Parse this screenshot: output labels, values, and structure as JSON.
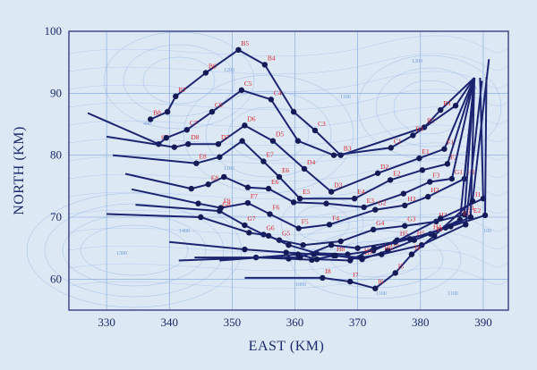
{
  "chart_data": {
    "type": "line",
    "xlabel": "EAST (KM)",
    "ylabel": "NORTH (KM)",
    "xlim": [
      324,
      394
    ],
    "ylim": [
      55,
      100
    ],
    "xticks": [
      "330",
      "340",
      "350",
      "360",
      "370",
      "380",
      "390"
    ],
    "yticks": [
      "60",
      "70",
      "80",
      "90",
      "100"
    ],
    "grid": true,
    "colors": {
      "line": "#1b2470",
      "marker": "#141a55",
      "label": "#d82a2a",
      "contour": "#8fb4e6",
      "background": "#dde8f5",
      "grid": "#7ea4d8"
    },
    "hub": [
      388.6,
      92.5
    ],
    "contour_labels": [
      "1300",
      "1400",
      "1100",
      "1100",
      "1200",
      "1000",
      "400",
      "1100",
      "1000",
      "100",
      "1200",
      "1100"
    ],
    "series": [
      {
        "points": [
          [
            337.0,
            85.8
          ],
          [
            339.7,
            87.0
          ],
          [
            341.0,
            89.5
          ],
          [
            345.8,
            93.3
          ],
          [
            351.0,
            97.0
          ],
          [
            355.2,
            94.6
          ],
          [
            359.8,
            87.0
          ],
          [
            363.2,
            84.0
          ],
          [
            367.3,
            80.0
          ],
          [
            380.6,
            84.5
          ],
          [
            383.2,
            87.3
          ],
          [
            388.6,
            92.5
          ]
        ],
        "labels": [
          "B8",
          "",
          "B7",
          "B6",
          "B5",
          "B4",
          "",
          "C3",
          "B3",
          "B2",
          "B1",
          ""
        ]
      },
      {
        "points": [
          [
            327.0,
            86.8
          ],
          [
            338.3,
            81.8
          ],
          [
            339.5,
            82.8
          ],
          [
            342.8,
            84.1
          ],
          [
            346.8,
            87.0
          ],
          [
            351.5,
            90.5
          ],
          [
            356.2,
            89.0
          ],
          [
            360.5,
            82.3
          ],
          [
            366.2,
            80.0
          ],
          [
            375.3,
            81.2
          ],
          [
            378.8,
            83.2
          ],
          [
            385.6,
            88.0
          ],
          [
            388.6,
            92.5
          ]
        ],
        "labels": [
          "",
          "C8",
          "",
          "C7",
          "C6",
          "C5",
          "C4",
          "",
          "",
          "C1",
          "D1",
          "",
          ""
        ]
      },
      {
        "points": [
          [
            330.0,
            83.0
          ],
          [
            340.8,
            81.3
          ],
          [
            343.0,
            81.8
          ],
          [
            347.8,
            81.8
          ],
          [
            352.0,
            84.8
          ],
          [
            356.5,
            82.3
          ],
          [
            361.5,
            77.8
          ],
          [
            365.8,
            74.1
          ],
          [
            373.2,
            77.1
          ],
          [
            379.8,
            79.5
          ],
          [
            383.8,
            81.0
          ],
          [
            388.6,
            92.5
          ]
        ],
        "labels": [
          "",
          "",
          "D8",
          "D7",
          "D6",
          "D5",
          "D4",
          "D3",
          "D2",
          "E1",
          "F1",
          ""
        ]
      },
      {
        "points": [
          [
            331.0,
            80.0
          ],
          [
            344.3,
            78.7
          ],
          [
            348.0,
            79.7
          ],
          [
            351.6,
            82.3
          ],
          [
            355.0,
            79.0
          ],
          [
            357.5,
            76.5
          ],
          [
            360.8,
            73.0
          ],
          [
            369.5,
            73.0
          ],
          [
            375.2,
            76.0
          ],
          [
            380.3,
            77.6
          ],
          [
            384.3,
            78.6
          ],
          [
            388.6,
            92.5
          ]
        ],
        "labels": [
          "",
          "E8",
          "",
          "",
          "E7",
          "E6",
          "E5",
          "E4",
          "E2",
          "",
          "F2",
          ""
        ]
      },
      {
        "points": [
          [
            333.0,
            77.0
          ],
          [
            343.5,
            74.6
          ],
          [
            346.2,
            75.3
          ],
          [
            348.7,
            76.5
          ],
          [
            352.5,
            74.8
          ],
          [
            355.8,
            74.6
          ],
          [
            359.8,
            72.4
          ],
          [
            365.0,
            72.2
          ],
          [
            371.0,
            71.6
          ],
          [
            377.3,
            73.8
          ],
          [
            381.5,
            75.7
          ],
          [
            385.0,
            76.2
          ],
          [
            388.6,
            92.5
          ]
        ],
        "labels": [
          "",
          "",
          "E8",
          "",
          "",
          "E6",
          "",
          "",
          "E3",
          "",
          "F3",
          "G1",
          ""
        ]
      },
      {
        "points": [
          [
            334.0,
            74.5
          ],
          [
            344.6,
            72.2
          ],
          [
            348.2,
            71.5
          ],
          [
            352.5,
            72.3
          ],
          [
            356.0,
            70.5
          ],
          [
            360.6,
            68.2
          ],
          [
            365.5,
            68.8
          ],
          [
            372.8,
            71.2
          ],
          [
            377.5,
            71.9
          ],
          [
            381.2,
            73.3
          ],
          [
            387.0,
            76.2
          ],
          [
            388.6,
            92.5
          ]
        ],
        "labels": [
          "",
          "",
          "F8",
          "F7",
          "F6",
          "F5",
          "F4",
          "G2",
          "H3",
          "H2",
          "H1",
          ""
        ]
      },
      {
        "points": [
          [
            334.6,
            72.0
          ],
          [
            348.0,
            71.0
          ],
          [
            352.0,
            68.7
          ],
          [
            355.0,
            67.2
          ],
          [
            357.5,
            66.3
          ],
          [
            361.3,
            65.5
          ],
          [
            367.3,
            66.1
          ],
          [
            372.5,
            68.0
          ],
          [
            377.5,
            68.6
          ],
          [
            382.5,
            69.3
          ],
          [
            387.0,
            70.4
          ],
          [
            388.6,
            92.5
          ]
        ],
        "labels": [
          "",
          "G8",
          "G7",
          "G6",
          "G5",
          "",
          "",
          "G4",
          "G3",
          "H3",
          "E1",
          ""
        ]
      },
      {
        "points": [
          [
            330.0,
            70.5
          ],
          [
            345.0,
            70.0
          ],
          [
            352.7,
            67.5
          ],
          [
            355.8,
            67.0
          ],
          [
            359.0,
            65.5
          ],
          [
            363.4,
            64.2
          ],
          [
            368.4,
            64.0
          ],
          [
            372.5,
            64.6
          ],
          [
            376.3,
            66.3
          ],
          [
            381.6,
            67.3
          ],
          [
            386.3,
            69.6
          ],
          [
            388.6,
            92.5
          ]
        ],
        "labels": [
          "",
          "",
          "",
          "",
          "",
          "",
          "",
          "",
          "H5",
          "H4",
          "E2",
          ""
        ]
      },
      {
        "points": [
          [
            340.0,
            66.0
          ],
          [
            352.0,
            64.8
          ],
          [
            358.6,
            64.3
          ],
          [
            363.0,
            64.0
          ],
          [
            366.5,
            63.8
          ],
          [
            370.7,
            63.2
          ],
          [
            374.8,
            64.6
          ],
          [
            379.0,
            66.3
          ],
          [
            384.0,
            68.3
          ],
          [
            388.0,
            70.0
          ],
          [
            388.6,
            92.5
          ]
        ],
        "labels": [
          "",
          "",
          "",
          "",
          "",
          "H7",
          "H6",
          "H5",
          "",
          "E2",
          ""
        ]
      },
      {
        "points": [
          [
            341.5,
            63.0
          ],
          [
            353.8,
            63.5
          ],
          [
            359.0,
            63.3
          ],
          [
            362.7,
            63.1
          ],
          [
            366.2,
            63.8
          ],
          [
            370.6,
            63.5
          ],
          [
            373.8,
            64.0
          ],
          [
            380.2,
            65.5
          ],
          [
            387.2,
            68.8
          ],
          [
            389.8,
            92.0
          ]
        ],
        "labels": [
          "",
          "",
          "",
          "",
          "H8",
          "H7",
          "H6",
          "",
          "",
          ""
        ]
      },
      {
        "points": [
          [
            344.0,
            63.5
          ],
          [
            360.8,
            63.5
          ],
          [
            365.8,
            65.5
          ],
          [
            370.0,
            65.0
          ],
          [
            376.0,
            66.0
          ],
          [
            383.2,
            69.8
          ],
          [
            390.0,
            73.0
          ],
          [
            389.5,
            92.5
          ]
        ],
        "labels": [
          "",
          "",
          "",
          "",
          "",
          "",
          "",
          ""
        ]
      },
      {
        "points": [
          [
            348.0,
            63.0
          ],
          [
            360.5,
            64.0
          ],
          [
            363.5,
            63.2
          ],
          [
            368.8,
            63.0
          ],
          [
            372.6,
            65.0
          ],
          [
            378.3,
            66.5
          ],
          [
            384.8,
            68.5
          ],
          [
            390.3,
            70.3
          ],
          [
            390.5,
            92.6
          ]
        ],
        "labels": [
          "",
          "",
          "",
          "",
          "",
          "",
          "",
          "",
          ""
        ]
      },
      {
        "points": [
          [
            352.0,
            60.2
          ],
          [
            364.4,
            60.2
          ],
          [
            368.8,
            59.6
          ],
          [
            372.8,
            58.5
          ],
          [
            376.0,
            61.0
          ],
          [
            378.6,
            64.0
          ],
          [
            382.2,
            67.0
          ],
          [
            388.3,
            72.6
          ],
          [
            390.9,
            95.5
          ]
        ],
        "labels": [
          "",
          "I8",
          "I7",
          "I6",
          "I5",
          "I4",
          "I3",
          "I1",
          ""
        ]
      }
    ]
  }
}
